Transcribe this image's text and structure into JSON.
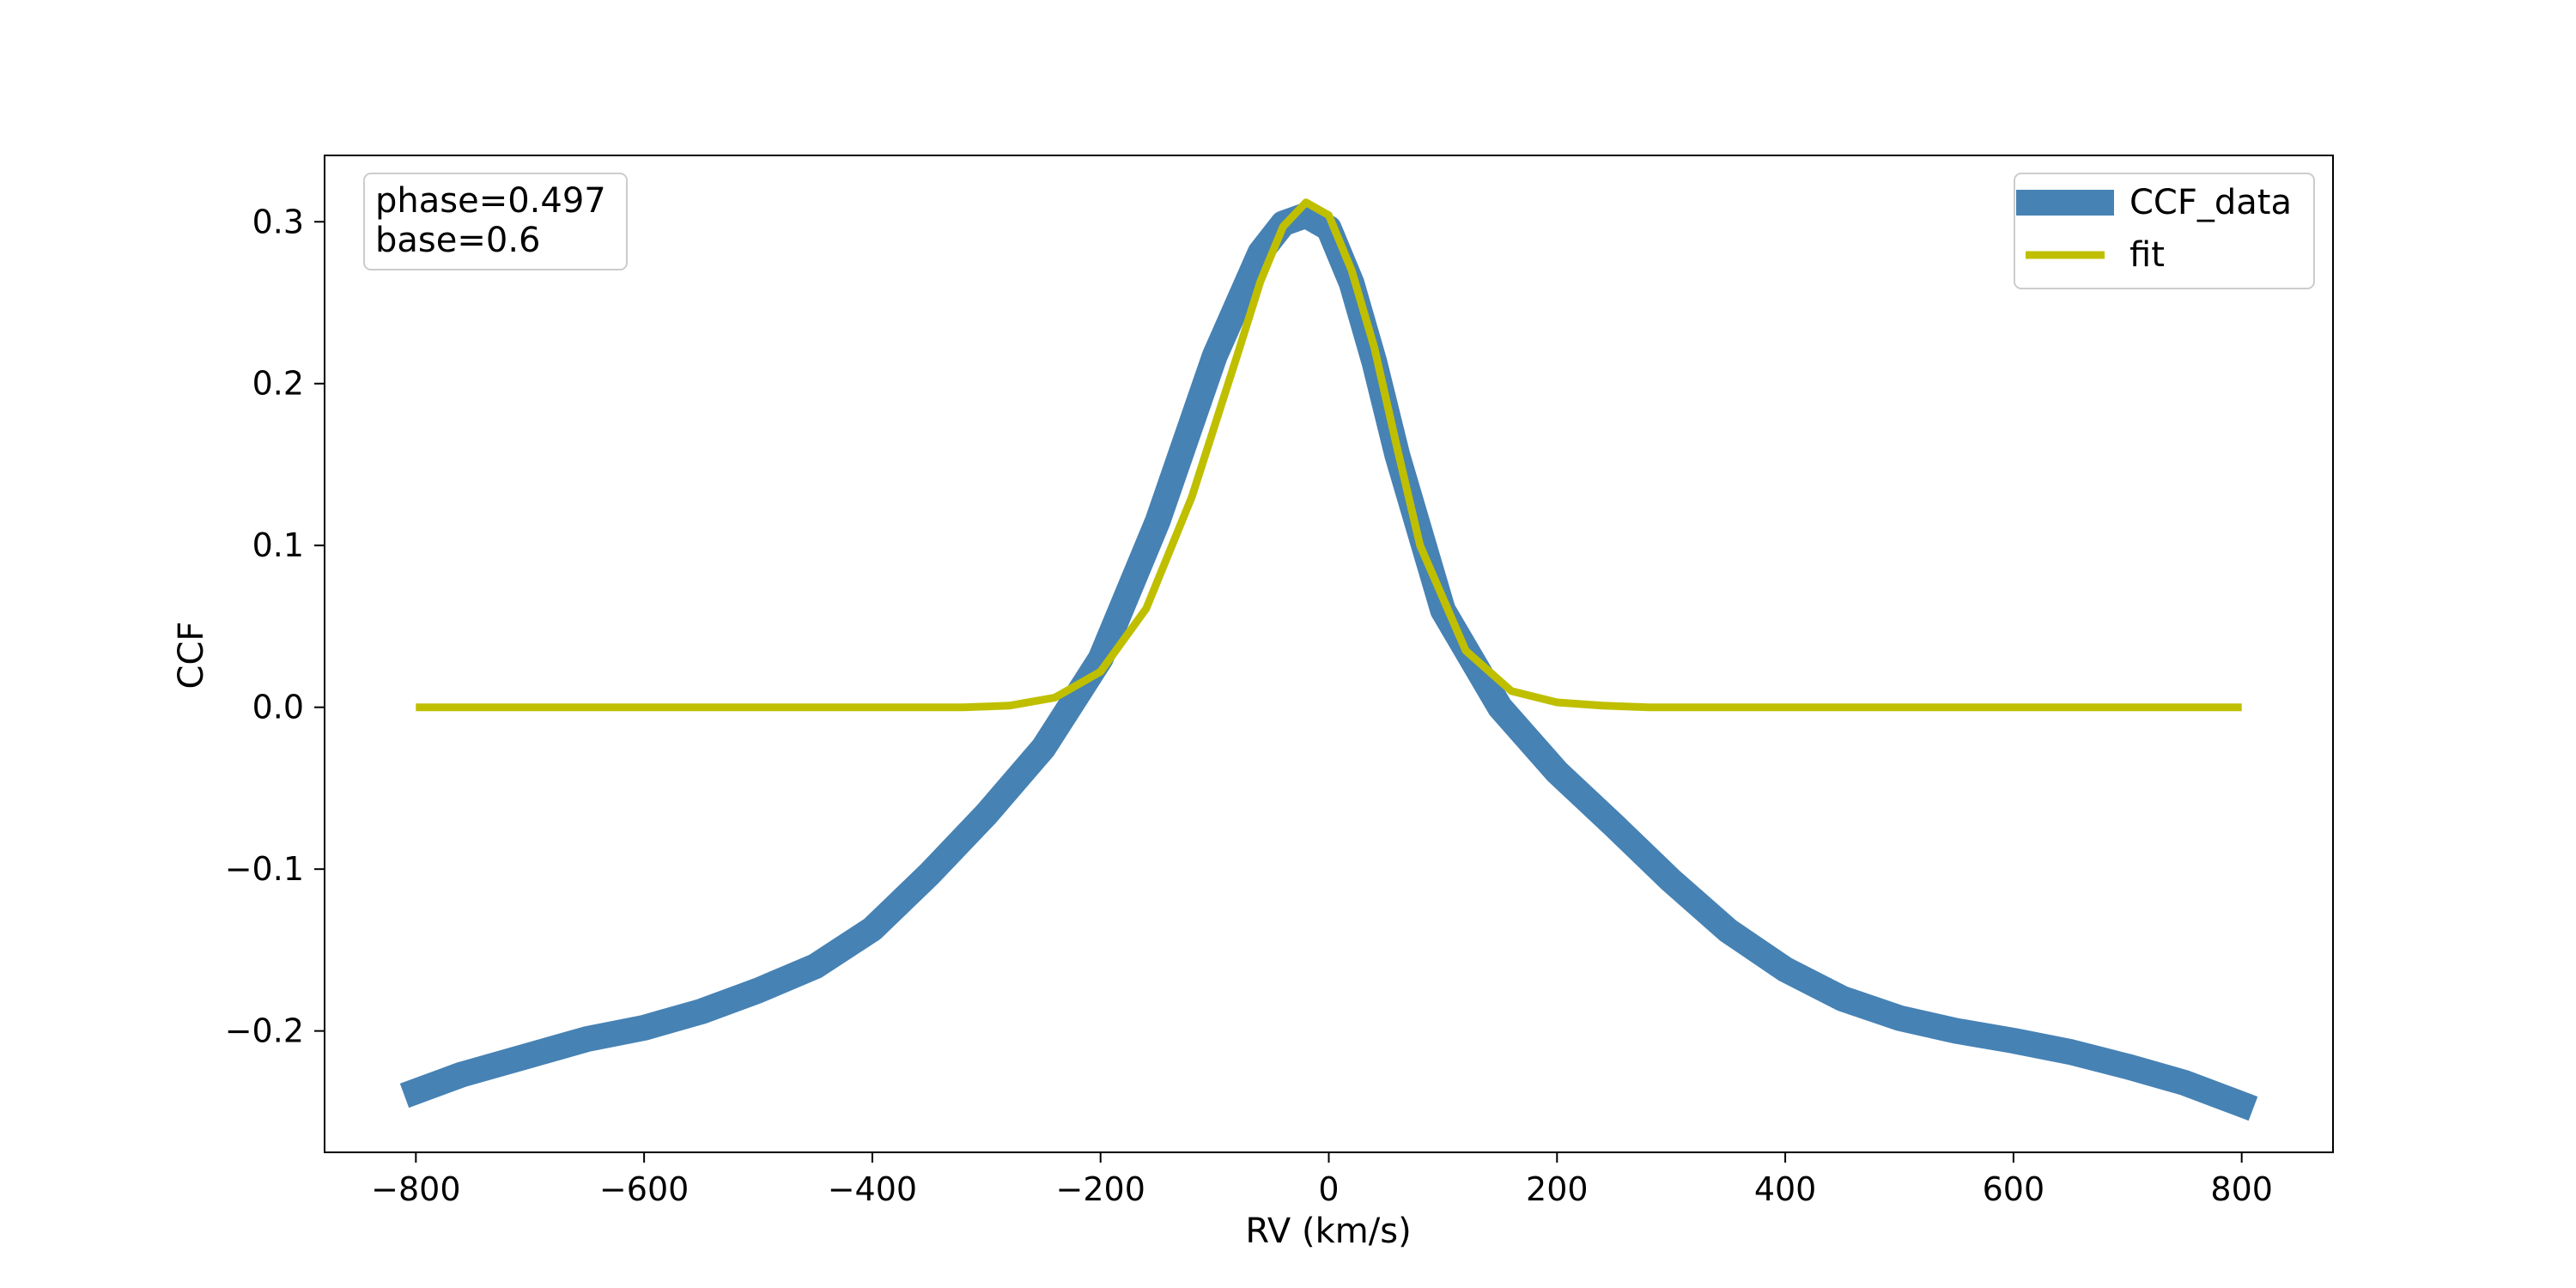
{
  "chart_data": {
    "type": "line",
    "xlabel": "RV (km/s)",
    "ylabel": "CCF",
    "xlim": [
      -880,
      880
    ],
    "ylim": [
      -0.275,
      0.341
    ],
    "xticks": [
      -800,
      -600,
      -400,
      -200,
      0,
      200,
      400,
      600,
      800
    ],
    "xtick_labels": [
      "−800",
      "−600",
      "−400",
      "−200",
      "0",
      "200",
      "400",
      "600",
      "800"
    ],
    "yticks": [
      -0.2,
      -0.1,
      0.0,
      0.1,
      0.2,
      0.3
    ],
    "ytick_labels": [
      "−0.2",
      "−0.1",
      "0.0",
      "0.1",
      "0.2",
      "0.3"
    ],
    "grid": false,
    "legend_position": "top-right",
    "annotation": {
      "lines": [
        "phase=0.497",
        "base=0.6"
      ],
      "position": "top-left"
    },
    "series": [
      {
        "name": "CCF_data",
        "color": "#4682B4",
        "style": "thick",
        "x": [
          -810,
          -760,
          -700,
          -650,
          -600,
          -550,
          -500,
          -450,
          -400,
          -350,
          -300,
          -250,
          -200,
          -150,
          -100,
          -60,
          -40,
          -20,
          0,
          20,
          40,
          60,
          100,
          150,
          200,
          250,
          300,
          350,
          400,
          450,
          500,
          550,
          600,
          650,
          700,
          750,
          810
        ],
        "y": [
          -0.24,
          -0.227,
          -0.215,
          -0.205,
          -0.198,
          -0.188,
          -0.175,
          -0.16,
          -0.137,
          -0.103,
          -0.066,
          -0.025,
          0.03,
          0.115,
          0.217,
          0.281,
          0.299,
          0.304,
          0.296,
          0.262,
          0.213,
          0.156,
          0.06,
          0.0,
          -0.04,
          -0.073,
          -0.107,
          -0.138,
          -0.162,
          -0.18,
          -0.192,
          -0.2,
          -0.206,
          -0.213,
          -0.222,
          -0.232,
          -0.248
        ]
      },
      {
        "name": "fit",
        "color": "#BFBF00",
        "style": "thin",
        "x": [
          -800,
          -600,
          -400,
          -320,
          -280,
          -240,
          -200,
          -160,
          -120,
          -80,
          -60,
          -40,
          -20,
          0,
          20,
          40,
          60,
          80,
          120,
          160,
          200,
          240,
          280,
          320,
          400,
          600,
          800
        ],
        "y": [
          0.0,
          0.0,
          0.0,
          0.0,
          0.001,
          0.006,
          0.022,
          0.061,
          0.13,
          0.218,
          0.263,
          0.297,
          0.312,
          0.304,
          0.27,
          0.222,
          0.16,
          0.1,
          0.035,
          0.01,
          0.003,
          0.001,
          0.0,
          0.0,
          0.0,
          0.0,
          0.0
        ]
      }
    ]
  }
}
